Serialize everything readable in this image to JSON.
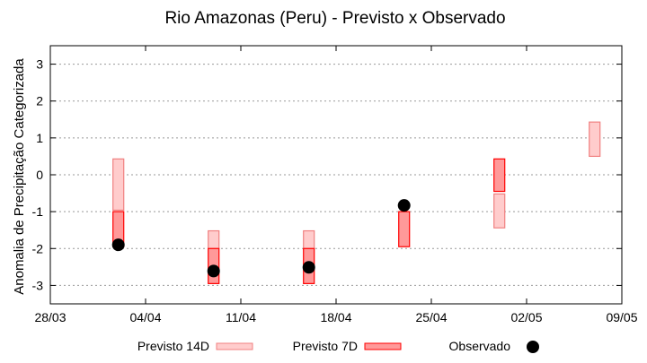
{
  "chart_data": {
    "type": "range-bar",
    "title": "Rio Amazonas (Peru) - Previsto x Observado",
    "ylabel": "Anomalia de Precipitação Categorizada",
    "xlabel": "",
    "ylim": [
      -3.5,
      3.5
    ],
    "yticks": [
      -3,
      -2,
      -1,
      0,
      1,
      2,
      3
    ],
    "xlim": [
      "2025-03-28",
      "2025-05-09"
    ],
    "xticks": [
      {
        "date": "2025-03-28",
        "label": "28/03"
      },
      {
        "date": "2025-04-04",
        "label": "04/04"
      },
      {
        "date": "2025-04-11",
        "label": "11/04"
      },
      {
        "date": "2025-04-18",
        "label": "18/04"
      },
      {
        "date": "2025-04-25",
        "label": "25/04"
      },
      {
        "date": "2025-05-02",
        "label": "02/05"
      },
      {
        "date": "2025-05-09",
        "label": "09/05"
      }
    ],
    "grid": "horizontal dotted",
    "legend_position": "bottom",
    "series": [
      {
        "name": "Previsto 14D",
        "color": "#ffcccc",
        "stroke": "#f08080",
        "ranges": [
          {
            "date": "2025-04-02",
            "low": -0.96,
            "high": 0.43
          },
          {
            "date": "2025-04-09",
            "low": -2.0,
            "high": -1.52
          },
          {
            "date": "2025-04-16",
            "low": -2.0,
            "high": -1.52
          },
          {
            "date": "2025-04-30",
            "low": -1.44,
            "high": -0.52
          },
          {
            "date": "2025-05-07",
            "low": 0.5,
            "high": 1.43
          }
        ]
      },
      {
        "name": "Previsto 7D",
        "color": "#ff9999",
        "stroke": "#ff0000",
        "ranges": [
          {
            "date": "2025-04-02",
            "low": -1.95,
            "high": -1.0
          },
          {
            "date": "2025-04-09",
            "low": -2.95,
            "high": -2.0
          },
          {
            "date": "2025-04-16",
            "low": -2.95,
            "high": -2.0
          },
          {
            "date": "2025-04-23",
            "low": -1.95,
            "high": -1.0
          },
          {
            "date": "2025-04-30",
            "low": -0.45,
            "high": 0.43
          }
        ]
      },
      {
        "name": "Observado",
        "color": "#000000",
        "points": [
          {
            "date": "2025-04-02",
            "value": -1.9
          },
          {
            "date": "2025-04-09",
            "value": -2.61
          },
          {
            "date": "2025-04-16",
            "value": -2.51
          },
          {
            "date": "2025-04-23",
            "value": -0.83
          }
        ]
      }
    ]
  }
}
